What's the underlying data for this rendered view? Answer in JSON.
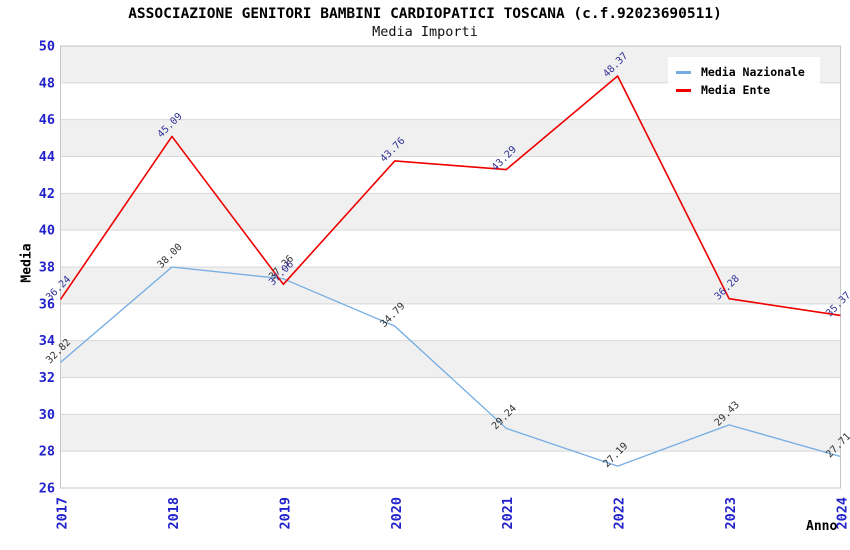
{
  "chart": {
    "title": "ASSOCIAZIONE GENITORI BAMBINI CARDIOPATICI TOSCANA (c.f.92023690511)",
    "subtitle": "Media Importi"
  },
  "chart_data": {
    "type": "line",
    "title": "ASSOCIAZIONE GENITORI BAMBINI CARDIOPATICI TOSCANA (c.f.92023690511)",
    "subtitle": "Media Importi",
    "categories": [
      "2017",
      "2018",
      "2019",
      "2020",
      "2021",
      "2022",
      "2023",
      "2024"
    ],
    "series": [
      {
        "name": "Media Nazionale",
        "color": "#74ade2",
        "label_color": "#333333",
        "values": [
          32.82,
          38.0,
          37.36,
          34.79,
          29.24,
          27.19,
          29.43,
          27.71
        ]
      },
      {
        "name": "Media Ente",
        "color": "#ee0000",
        "label_color": "#333399",
        "values": [
          36.24,
          45.09,
          37.06,
          43.76,
          43.29,
          48.37,
          36.28,
          35.37
        ]
      }
    ],
    "xlabel": "Anno",
    "ylabel": "Media",
    "ylim": [
      26,
      50
    ],
    "y_ticks": [
      26,
      28,
      30,
      32,
      34,
      36,
      38,
      40,
      42,
      44,
      46,
      48,
      50
    ],
    "grid": "horizontal alternating bands",
    "legend_position": "top-right",
    "colors": {
      "tick_label": "#2222cc",
      "band_gray": "#f0f0f0",
      "band_white": "#ffffff",
      "grid_line": "#d8d8d8",
      "plot_border": "#c6c6c6",
      "title_text": "#000000"
    }
  }
}
